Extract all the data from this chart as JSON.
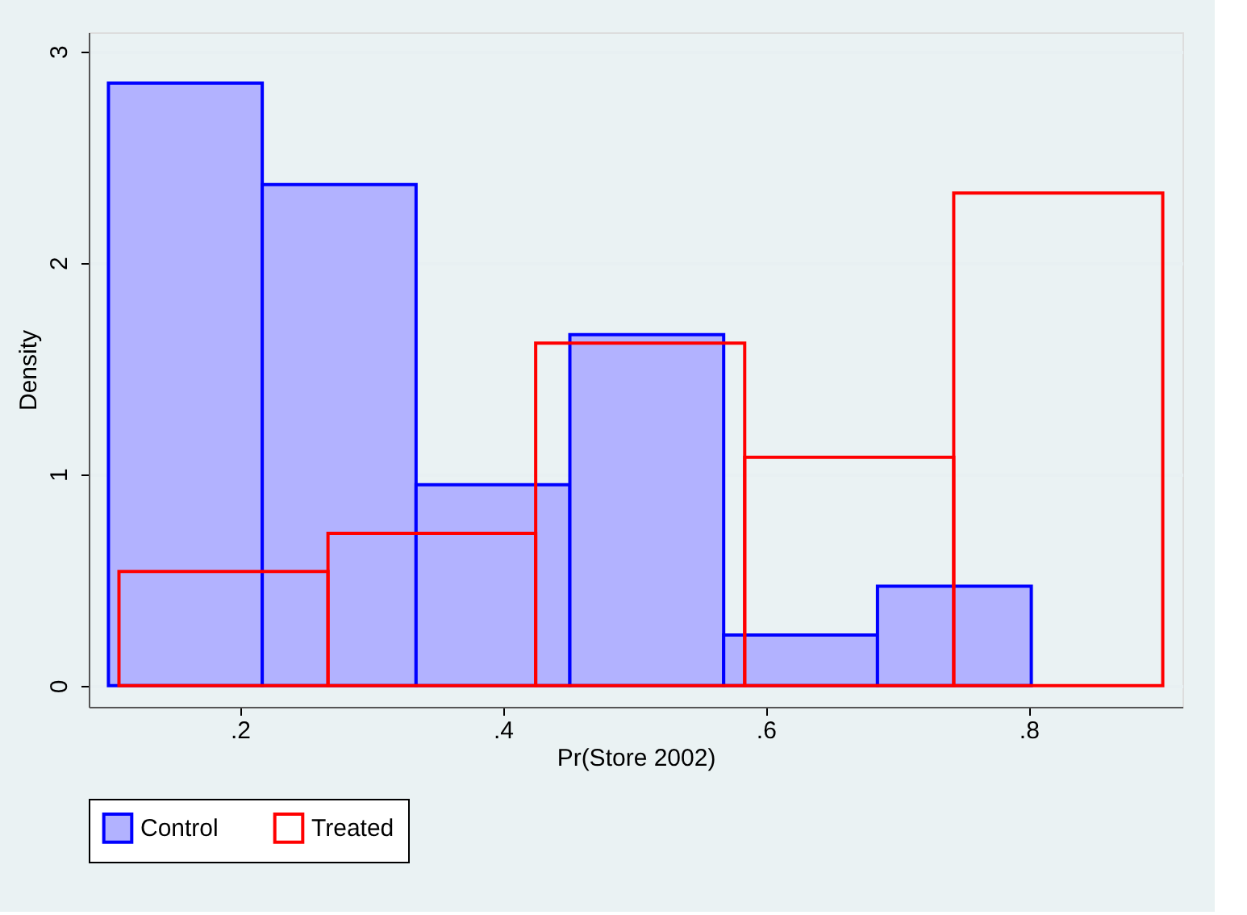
{
  "chart_data": {
    "type": "histogram",
    "xlabel": "Pr(Store 2002)",
    "ylabel": "Density",
    "bins": [
      0.1,
      0.217,
      0.334,
      0.451,
      0.568,
      0.685,
      0.802
    ],
    "series": [
      {
        "name": "Control",
        "color": "#0000ff",
        "values": [
          2.85,
          2.37,
          0.95,
          1.66,
          0.24,
          0.47
        ]
      },
      {
        "name": "Treated",
        "color": "#ff0000",
        "bins": [
          0.108,
          0.267,
          0.425,
          0.584,
          0.743,
          0.902
        ],
        "values": [
          0.54,
          0.72,
          1.62,
          1.08,
          2.33
        ]
      }
    ],
    "xlim": [
      0.085,
      0.917
    ],
    "ylim": [
      -0.1,
      3.09
    ],
    "xticks": [
      {
        "value": 0.2,
        "label": ".2"
      },
      {
        "value": 0.4,
        "label": ".4"
      },
      {
        "value": 0.6,
        "label": ".6"
      },
      {
        "value": 0.8,
        "label": ".8"
      }
    ],
    "yticks": [
      0,
      1,
      2,
      3
    ],
    "grid": "y",
    "legend": "bottom"
  }
}
